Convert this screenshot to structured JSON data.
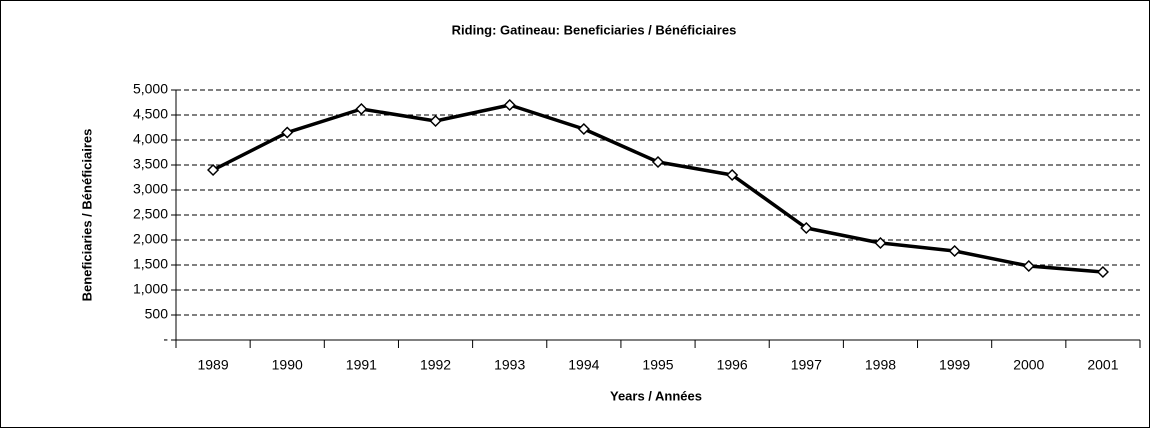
{
  "chart_data": {
    "type": "line",
    "title": "Riding:  Gatineau:  Beneficiaries / Bénéficiaires",
    "x_label": "Years / Années",
    "y_label": "Beneficiaries / Bénéficiaires",
    "categories": [
      "1989",
      "1990",
      "1991",
      "1992",
      "1993",
      "1994",
      "1995",
      "1996",
      "1997",
      "1998",
      "1999",
      "2000",
      "2001"
    ],
    "series": [
      {
        "name": "Beneficiaries / Bénéficiaires",
        "color": "#000000",
        "values": [
          3400,
          4150,
          4620,
          4380,
          4700,
          4220,
          3560,
          3300,
          2240,
          1940,
          1780,
          1480,
          1360
        ]
      }
    ],
    "ylim": [
      0,
      5000
    ],
    "yticks": [
      {
        "value": 0,
        "label": "-"
      },
      500,
      {
        "value": 1000,
        "label": "1,000"
      },
      {
        "value": 1500,
        "label": "1,500"
      },
      {
        "value": 2000,
        "label": "2,000"
      },
      {
        "value": 2500,
        "label": "2,500"
      },
      {
        "value": 3000,
        "label": "3,000"
      },
      {
        "value": 3500,
        "label": "3,500"
      },
      {
        "value": 4000,
        "label": "4,000"
      },
      {
        "value": 4500,
        "label": "4,500"
      },
      {
        "value": 5000,
        "label": "5,000"
      }
    ],
    "grid": true
  }
}
